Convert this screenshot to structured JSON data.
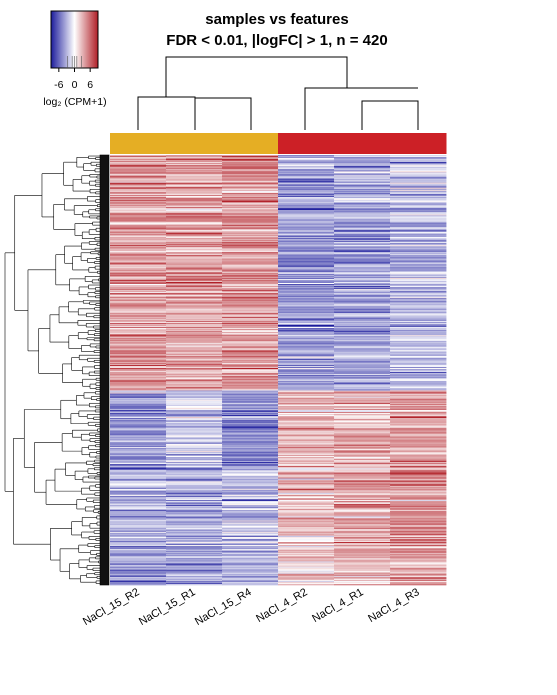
{
  "chart_data": {
    "type": "heatmap",
    "title_line1": "samples vs features",
    "title_line2": "FDR < 0.01, |logFC| > 1, n = 420",
    "n_features": 420,
    "columns": [
      "NaCl_15_R2",
      "NaCl_15_R1",
      "NaCl_15_R4",
      "NaCl_4_R2",
      "NaCl_4_R1",
      "NaCl_4_R3"
    ],
    "column_groups": [
      "NaCl_15",
      "NaCl_15",
      "NaCl_15",
      "NaCl_4",
      "NaCl_4",
      "NaCl_4"
    ],
    "group_colors": {
      "NaCl_15": "#E5AE24",
      "NaCl_4": "#CC2026"
    },
    "colorkey": {
      "label": "log₂ (CPM+1)",
      "ticks": [
        "-6",
        "0",
        "6"
      ],
      "tick_values": [
        -6,
        0,
        6
      ],
      "range": [
        -9,
        9
      ],
      "low_color": "#1c1c9c",
      "mid_color": "#ffffff",
      "high_color": "#b01e26"
    },
    "row_block_means": [
      {
        "rows": 230,
        "values": [
          4,
          3.5,
          4,
          -4,
          -3.5,
          -2.5
        ]
      },
      {
        "rows": 75,
        "values": [
          -3.5,
          -2,
          -4.5,
          3,
          3,
          4
        ]
      },
      {
        "rows": 115,
        "values": [
          -3,
          -3,
          -2.5,
          2.5,
          3.5,
          4.5
        ]
      }
    ]
  }
}
